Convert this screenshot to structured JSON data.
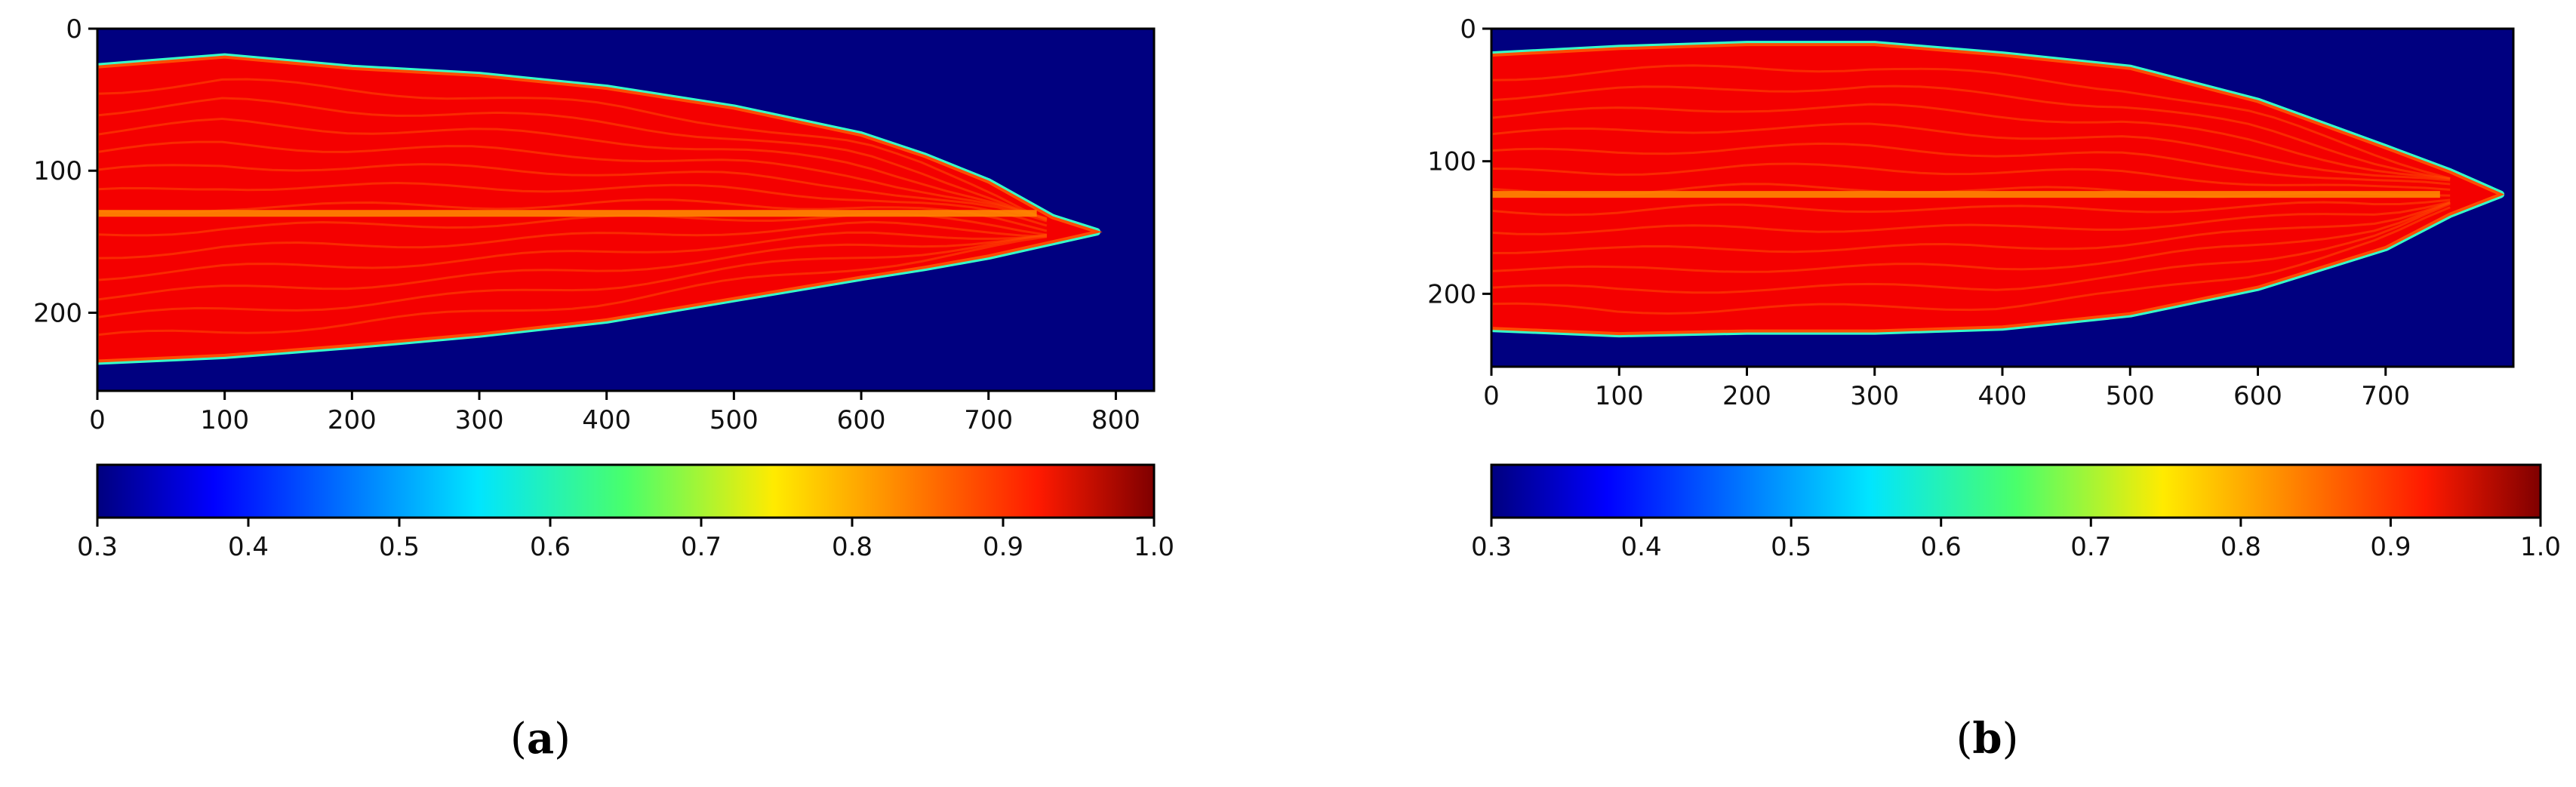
{
  "chart_data": [
    {
      "type": "heatmap",
      "caption": "a",
      "title": "",
      "xlabel": "",
      "ylabel": "",
      "xlim": [
        0,
        830
      ],
      "ylim": [
        255,
        0
      ],
      "x_ticks": [
        "0",
        "100",
        "200",
        "300",
        "400",
        "500",
        "600",
        "700",
        "800"
      ],
      "y_ticks": [
        "0",
        "100",
        "200"
      ],
      "colorbar": {
        "range": [
          0.3,
          1.0
        ],
        "ticks": [
          "0.3",
          "0.4",
          "0.5",
          "0.6",
          "0.7",
          "0.8",
          "0.9",
          "1.0"
        ],
        "colormap": "jet"
      },
      "background_value": 0.3,
      "object_value": 0.92,
      "midline_value": 0.82,
      "tip_value": 0.6,
      "midline_y": 130,
      "object_outline_upper": [
        [
          0,
          27
        ],
        [
          100,
          20
        ],
        [
          200,
          28
        ],
        [
          300,
          33
        ],
        [
          400,
          42
        ],
        [
          500,
          56
        ],
        [
          600,
          75
        ],
        [
          650,
          90
        ],
        [
          700,
          108
        ],
        [
          750,
          133
        ],
        [
          785,
          143
        ]
      ],
      "object_outline_lower": [
        [
          785,
          143
        ],
        [
          750,
          150
        ],
        [
          700,
          160
        ],
        [
          650,
          168
        ],
        [
          600,
          175
        ],
        [
          500,
          190
        ],
        [
          400,
          205
        ],
        [
          300,
          215
        ],
        [
          200,
          223
        ],
        [
          100,
          230
        ],
        [
          0,
          234
        ]
      ]
    },
    {
      "type": "heatmap",
      "caption": "b",
      "title": "",
      "xlabel": "",
      "ylabel": "",
      "xlim": [
        0,
        800
      ],
      "ylim": [
        255,
        0
      ],
      "x_ticks": [
        "0",
        "100",
        "200",
        "300",
        "400",
        "500",
        "600",
        "700"
      ],
      "y_ticks": [
        "0",
        "100",
        "200"
      ],
      "colorbar": {
        "range": [
          0.3,
          1.0
        ],
        "ticks": [
          "0.3",
          "0.4",
          "0.5",
          "0.6",
          "0.7",
          "0.8",
          "0.9",
          "1.0"
        ],
        "colormap": "jet"
      },
      "background_value": 0.3,
      "object_value": 0.92,
      "midline_value": 0.82,
      "tip_value": 0.6,
      "midline_y": 125,
      "object_outline_upper": [
        [
          0,
          20
        ],
        [
          100,
          15
        ],
        [
          200,
          12
        ],
        [
          300,
          12
        ],
        [
          400,
          20
        ],
        [
          500,
          30
        ],
        [
          600,
          55
        ],
        [
          700,
          90
        ],
        [
          750,
          108
        ],
        [
          790,
          125
        ]
      ],
      "object_outline_lower": [
        [
          790,
          125
        ],
        [
          750,
          140
        ],
        [
          700,
          165
        ],
        [
          600,
          195
        ],
        [
          500,
          215
        ],
        [
          400,
          225
        ],
        [
          300,
          228
        ],
        [
          200,
          228
        ],
        [
          100,
          230
        ],
        [
          0,
          226
        ]
      ]
    }
  ]
}
